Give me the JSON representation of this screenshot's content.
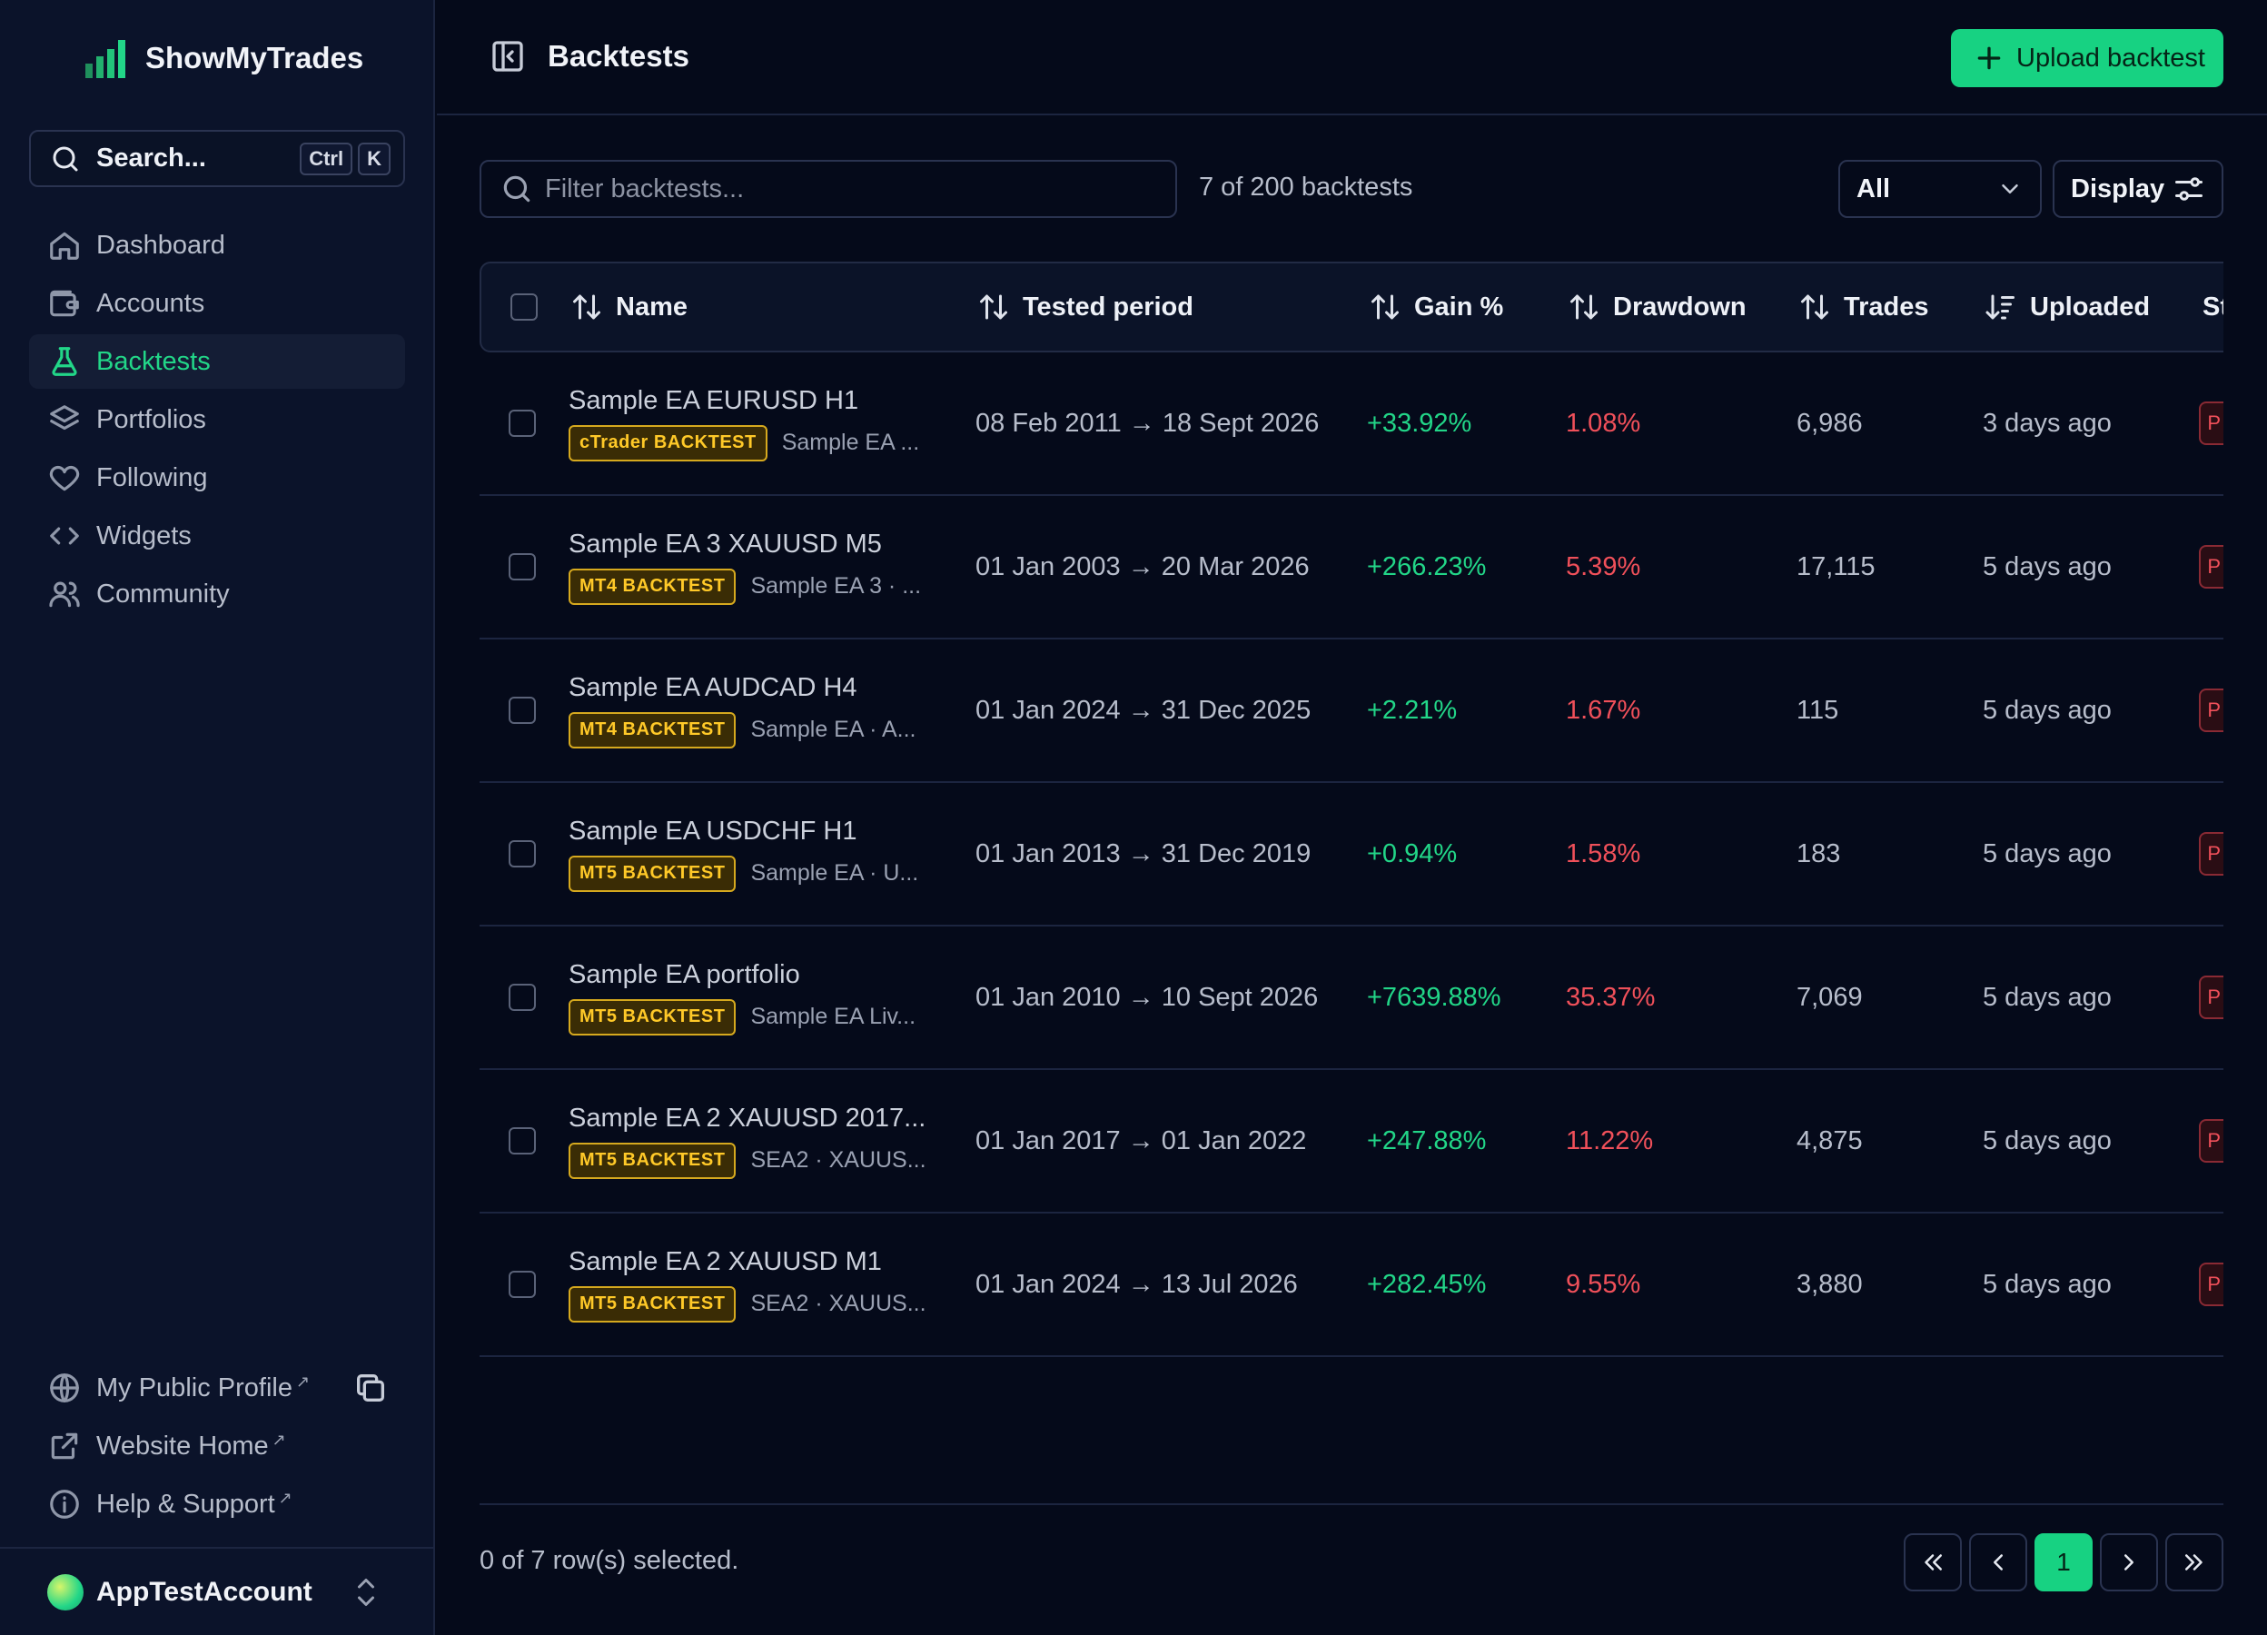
{
  "app": {
    "name": "ShowMyTrades"
  },
  "sidebar": {
    "search": {
      "label": "Search...",
      "kbd1": "Ctrl",
      "kbd2": "K"
    },
    "nav": [
      {
        "label": "Dashboard",
        "icon": "home-icon"
      },
      {
        "label": "Accounts",
        "icon": "wallet-icon"
      },
      {
        "label": "Backtests",
        "icon": "flask-icon",
        "active": true
      },
      {
        "label": "Portfolios",
        "icon": "layers-icon"
      },
      {
        "label": "Following",
        "icon": "heart-icon"
      },
      {
        "label": "Widgets",
        "icon": "code-icon"
      },
      {
        "label": "Community",
        "icon": "users-icon"
      }
    ],
    "footer": [
      {
        "label": "My Public Profile",
        "ext": "↗",
        "icon": "globe-icon"
      },
      {
        "label": "Website Home",
        "ext": "↗",
        "icon": "external-link-icon"
      },
      {
        "label": "Help & Support",
        "ext": "↗",
        "icon": "info-icon"
      }
    ],
    "account": {
      "name": "AppTestAccount"
    }
  },
  "header": {
    "title": "Backtests",
    "upload_label": "Upload backtest"
  },
  "filters": {
    "placeholder": "Filter backtests...",
    "count_text": "7 of 200 backtests",
    "status_value": "All",
    "display_label": "Display"
  },
  "table": {
    "columns": [
      "Name",
      "Tested period",
      "Gain %",
      "Drawdown",
      "Trades",
      "Uploaded",
      "St"
    ],
    "rows": [
      {
        "name": "Sample EA EURUSD H1",
        "badge": "cTrader BACKTEST",
        "strategy": "Sample EA ...",
        "period": "08 Feb 2011 → 18 Sept 2026",
        "gain": "+33.92%",
        "drawdown": "1.08%",
        "trades": "6,986",
        "uploaded": "3 days ago",
        "status": "P"
      },
      {
        "name": "Sample EA 3 XAUUSD M5",
        "badge": "MT4 BACKTEST",
        "strategy": "Sample EA 3 · ...",
        "period": "01 Jan 2003 → 20 Mar 2026",
        "gain": "+266.23%",
        "drawdown": "5.39%",
        "trades": "17,115",
        "uploaded": "5 days ago",
        "status": "P"
      },
      {
        "name": "Sample EA AUDCAD H4",
        "badge": "MT4 BACKTEST",
        "strategy": "Sample EA · A...",
        "period": "01 Jan 2024 → 31 Dec 2025",
        "gain": "+2.21%",
        "drawdown": "1.67%",
        "trades": "115",
        "uploaded": "5 days ago",
        "status": "P"
      },
      {
        "name": "Sample EA USDCHF H1",
        "badge": "MT5 BACKTEST",
        "strategy": "Sample EA · U...",
        "period": "01 Jan 2013 → 31 Dec 2019",
        "gain": "+0.94%",
        "drawdown": "1.58%",
        "trades": "183",
        "uploaded": "5 days ago",
        "status": "P"
      },
      {
        "name": "Sample EA portfolio",
        "badge": "MT5 BACKTEST",
        "strategy": "Sample EA Liv...",
        "period": "01 Jan 2010 → 10 Sept 2026",
        "gain": "+7639.88%",
        "drawdown": "35.37%",
        "trades": "7,069",
        "uploaded": "5 days ago",
        "status": "P"
      },
      {
        "name": "Sample EA 2 XAUUSD 2017...",
        "badge": "MT5 BACKTEST",
        "strategy": "SEA2 · XAUUS...",
        "period": "01 Jan 2017 → 01 Jan 2022",
        "gain": "+247.88%",
        "drawdown": "11.22%",
        "trades": "4,875",
        "uploaded": "5 days ago",
        "status": "P"
      },
      {
        "name": "Sample EA 2 XAUUSD M1",
        "badge": "MT5 BACKTEST",
        "strategy": "SEA2 · XAUUS...",
        "period": "01 Jan 2024 → 13 Jul 2026",
        "gain": "+282.45%",
        "drawdown": "9.55%",
        "trades": "3,880",
        "uploaded": "5 days ago",
        "status": "P"
      }
    ]
  },
  "footer": {
    "selection_text": "0 of 7 row(s) selected.",
    "current_page": "1"
  },
  "colors": {
    "accent": "#17d282",
    "gain": "#22d688",
    "drawdown": "#f0505a",
    "badge": "#ffc928",
    "background": "#050a1a"
  }
}
